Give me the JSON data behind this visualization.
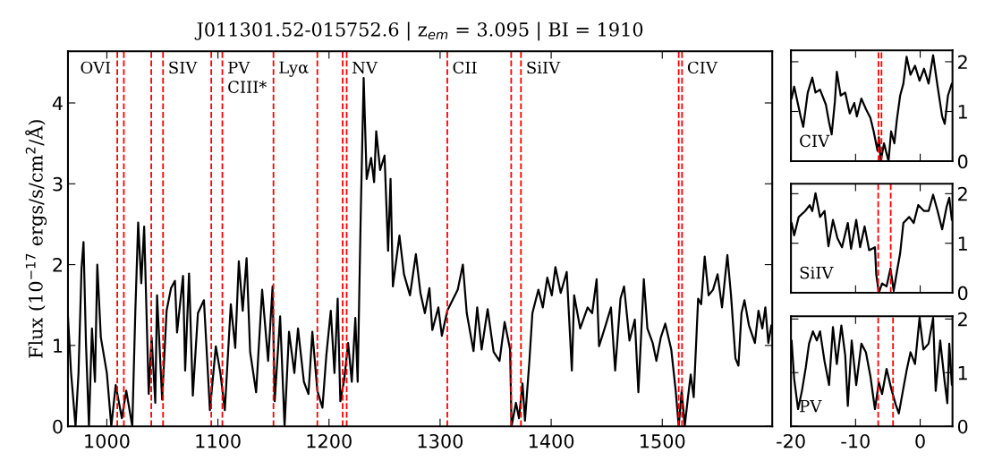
{
  "chart_data": [
    {
      "type": "line",
      "title": "J011301.52-015752.6 | z$_{em}$ = 3.095 | BI = 1910",
      "ylabel": "Flux (10$^{−17}$ ergs/s/cm$^{2}$/Å)",
      "x": [
        965,
        967.8,
        971.8,
        974.5,
        977.2,
        979,
        981.2,
        983.9,
        986.6,
        989.3,
        991.4,
        994.6,
        1000,
        1004,
        1008,
        1013.5,
        1017.5,
        1022.9,
        1025.6,
        1028.2,
        1031,
        1033.6,
        1037.7,
        1040.3,
        1043.6,
        1045.2,
        1049.8,
        1053.8,
        1057.8,
        1061.3,
        1063.2,
        1068.6,
        1070.5,
        1074,
        1077.4,
        1082,
        1087.4,
        1092.8,
        1098.1,
        1102.2,
        1106.2,
        1111.6,
        1115.6,
        1118.8,
        1122.3,
        1125.8,
        1129,
        1134.4,
        1139.8,
        1145.2,
        1149.2,
        1151.1,
        1156,
        1160,
        1164,
        1168.8,
        1172.1,
        1177.4,
        1181.5,
        1185,
        1189.5,
        1194.1,
        1197.6,
        1201.6,
        1204.9,
        1207.8,
        1210.2,
        1213.7,
        1217.2,
        1220.5,
        1223.7,
        1225.8,
        1228.5,
        1231.2,
        1233.9,
        1237.9,
        1240.6,
        1242.5,
        1246,
        1250,
        1253.2,
        1255.4,
        1257.5,
        1263.4,
        1267.5,
        1272.9,
        1278.2,
        1282.3,
        1286.3,
        1290.4,
        1293,
        1298.4,
        1301.6,
        1306.5,
        1311.9,
        1315.9,
        1320.5,
        1324,
        1330.1,
        1333.4,
        1337.4,
        1342.8,
        1348.2,
        1353.5,
        1358.1,
        1363,
        1364.3,
        1368.3,
        1371,
        1374.2,
        1376.4,
        1380.4,
        1383.1,
        1388.5,
        1392.5,
        1396.5,
        1400.6,
        1403.8,
        1408.6,
        1414,
        1418.6,
        1420.7,
        1426.1,
        1432.8,
        1436.9,
        1440.9,
        1443.1,
        1449,
        1453.8,
        1457.6,
        1462.4,
        1465.6,
        1470.5,
        1475.3,
        1478.5,
        1483.4,
        1486.6,
        1491.4,
        1494.7,
        1498.7,
        1502.7,
        1508.1,
        1512.1,
        1514.8,
        1517.5,
        1520.2,
        1522.9,
        1525.6,
        1528.3,
        1532.3,
        1535,
        1538.2,
        1541.7,
        1545.7,
        1549.8,
        1553.8,
        1558.6,
        1561.9,
        1565.9,
        1568.6,
        1571.3,
        1574,
        1578,
        1583.4,
        1586.6,
        1590.1,
        1592.8,
        1595.5,
        1598.2
      ],
      "series": [
        {
          "color": "#000000",
          "values": [
            1.36,
            0.66,
            0,
            0.66,
            1.95,
            2.28,
            1.03,
            0,
            1.21,
            0.55,
            2.0,
            1.1,
            0.66,
            0,
            0.51,
            0.1,
            0.44,
            0,
            1.4,
            2.52,
            1.77,
            2.47,
            0.4,
            1.1,
            0.29,
            1.62,
            0.33,
            1.43,
            1.71,
            1.8,
            1.16,
            1.86,
            0.69,
            1.89,
            0.38,
            1.4,
            1.56,
            0.2,
            0.99,
            0.66,
            0.2,
            1.51,
            0.97,
            2.04,
            1.43,
            2.08,
            0.92,
            0.42,
            1.69,
            0.81,
            1.73,
            0.31,
            1.36,
            0,
            1.17,
            0.66,
            1.21,
            0.55,
            0.4,
            1.17,
            0.44,
            0.23,
            0.88,
            1.43,
            0.66,
            1.58,
            0.31,
            0.58,
            1.03,
            0.55,
            1.34,
            0.55,
            2.58,
            4.31,
            3.06,
            3.32,
            3.02,
            3.65,
            3.17,
            3.35,
            2.17,
            3.06,
            1.73,
            2.36,
            1.88,
            1.62,
            2.13,
            1.65,
            1.4,
            1.71,
            1.19,
            1.47,
            1.12,
            1.43,
            1.58,
            1.69,
            2.0,
            1.4,
            0.93,
            1.47,
            0.95,
            1.45,
            0.92,
            0.81,
            1.29,
            0.95,
            0,
            0.29,
            0.1,
            0.53,
            0.07,
            0.81,
            1.4,
            1.69,
            1.47,
            1.84,
            1.62,
            1.97,
            1.65,
            1.91,
            0.69,
            1.62,
            1.21,
            1.47,
            1.4,
            1.82,
            0.99,
            1.25,
            1.47,
            0.69,
            1.58,
            1.73,
            1.06,
            1.32,
            0.42,
            1.82,
            1.21,
            1.03,
            0.81,
            1.1,
            1.27,
            0.95,
            0.44,
            0,
            0.44,
            0,
            0.33,
            0.64,
            0.36,
            1.58,
            1.51,
            2.1,
            1.62,
            1.69,
            1.88,
            1.47,
            2.12,
            1.62,
            0.84,
            0.75,
            1.4,
            1.56,
            1.25,
            1.03,
            1.43,
            1.21,
            1.47,
            1.03,
            1.25
          ]
        }
      ],
      "xlim": [
        965,
        1599
      ],
      "ylim": [
        0,
        4.64
      ],
      "xticks": [
        1000,
        1100,
        1200,
        1300,
        1400,
        1500
      ],
      "yticks": [
        0,
        1,
        2,
        3,
        4
      ],
      "grid": false,
      "line_style": "solid",
      "marker": "none",
      "ref_lines": [
        {
          "axis": "x",
          "value": 1009.4,
          "color": "#ff0000",
          "line_style": "dashed",
          "label": "OVI"
        },
        {
          "axis": "x",
          "value": 1015.3,
          "color": "#ff0000",
          "line_style": "dashed"
        },
        {
          "axis": "x",
          "value": 1040,
          "color": "#ff0000",
          "line_style": "dashed"
        },
        {
          "axis": "x",
          "value": 1050.6,
          "color": "#ff0000",
          "line_style": "dashed",
          "label": "SIV"
        },
        {
          "axis": "x",
          "value": 1094,
          "color": "#ff0000",
          "line_style": "dashed"
        },
        {
          "axis": "x",
          "value": 1104,
          "color": "#ff0000",
          "line_style": "dashed",
          "label": "PV\nCIII*"
        },
        {
          "axis": "x",
          "value": 1150,
          "color": "#ff0000",
          "line_style": "dashed",
          "label": "Lyα"
        },
        {
          "axis": "x",
          "value": 1189.5,
          "color": "#ff0000",
          "line_style": "dashed"
        },
        {
          "axis": "x",
          "value": 1212.3,
          "color": "#ff0000",
          "line_style": "dashed"
        },
        {
          "axis": "x",
          "value": 1215.9,
          "color": "#ff0000",
          "line_style": "dashed",
          "label": "NV"
        },
        {
          "axis": "x",
          "value": 1306.5,
          "color": "#ff0000",
          "line_style": "dashed",
          "label": "CII"
        },
        {
          "axis": "x",
          "value": 1364,
          "color": "#ff0000",
          "line_style": "dashed"
        },
        {
          "axis": "x",
          "value": 1372.8,
          "color": "#ff0000",
          "line_style": "dashed",
          "label": "SiIV"
        },
        {
          "axis": "x",
          "value": 1514.8,
          "color": "#ff0000",
          "line_style": "dashed"
        },
        {
          "axis": "x",
          "value": 1517.8,
          "color": "#ff0000",
          "line_style": "dashed",
          "label": "CIV"
        }
      ]
    },
    {
      "type": "line",
      "x": [
        -19.9,
        -19.5,
        -19,
        -18.5,
        -18.1,
        -17.4,
        -16.7,
        -16.2,
        -15.5,
        -14.6,
        -14.1,
        -13.7,
        -13.2,
        -12.9,
        -12.3,
        -11.6,
        -10.9,
        -10.2,
        -9.8,
        -9.1,
        -8.4,
        -7.7,
        -7.2,
        -6.6,
        -6.4,
        -6.1,
        -5.6,
        -4.9,
        -4.5,
        -4.0,
        -3.6,
        -3.1,
        -2.6,
        -2.1,
        -1.5,
        -0.8,
        -0.1,
        0.6,
        1.3,
        2.0,
        2.7,
        3.4,
        3.8,
        4.3,
        4.9
      ],
      "series": [
        {
          "color": "#000000",
          "values": [
            1.26,
            1.5,
            1.2,
            0.9,
            0.69,
            1.38,
            1.68,
            1.38,
            1.44,
            1.14,
            0.78,
            0.54,
            1.2,
            1.8,
            1.32,
            1.38,
            0.96,
            1.17,
            0.9,
            1.26,
            1.05,
            0.87,
            0.6,
            0.21,
            0.48,
            0,
            0.36,
            0,
            0.6,
            0.36,
            0.84,
            1.32,
            1.56,
            2.1,
            1.74,
            1.92,
            1.62,
            1.86,
            1.56,
            2.13,
            1.5,
            0.9,
            0.75,
            1.32,
            1.56
          ]
        }
      ],
      "xlim": [
        -20,
        5
      ],
      "ylim": [
        0,
        2.23
      ],
      "xticks": [
        -20,
        -10,
        0
      ],
      "yticks": [
        0,
        1,
        2
      ],
      "tick_labels": "y",
      "grid": false,
      "line_style": "solid",
      "marker": "none",
      "ref_lines": [
        {
          "axis": "x",
          "value": -6.46,
          "color": "#ff0000",
          "line_style": "dashed"
        },
        {
          "axis": "x",
          "value": -5.99,
          "color": "#ff0000",
          "line_style": "dashed"
        }
      ],
      "annotations": [
        "CIV"
      ]
    },
    {
      "type": "line",
      "x": [
        -19.9,
        -19.5,
        -18.8,
        -17.8,
        -17.1,
        -16.7,
        -16.2,
        -15.5,
        -14.8,
        -14.2,
        -13.5,
        -12.8,
        -12.1,
        -11.2,
        -10.7,
        -9.9,
        -9.3,
        -8.6,
        -7.9,
        -7.0,
        -6.8,
        -6.4,
        -5.9,
        -5.2,
        -4.6,
        -4.1,
        -3.6,
        -3.1,
        -2.6,
        -1.7,
        -1.0,
        -0.3,
        0.6,
        1.3,
        2.0,
        2.7,
        3.4,
        4.1,
        4.5,
        4.9
      ],
      "series": [
        {
          "color": "#000000",
          "values": [
            1.41,
            1.16,
            1.53,
            1.65,
            1.77,
            1.65,
            2.01,
            1.53,
            1.65,
            0.94,
            1.47,
            1.1,
            0.92,
            1.41,
            0.89,
            1.47,
            0.92,
            1.34,
            0.86,
            0.92,
            0.37,
            0,
            0.19,
            0.13,
            0.49,
            0.04,
            0.43,
            0.8,
            1.41,
            1.53,
            1.41,
            1.77,
            1.65,
            1.65,
            1.98,
            1.65,
            1.28,
            1.74,
            1.92,
            1.47
          ]
        }
      ],
      "xlim": [
        -20,
        5
      ],
      "ylim": [
        0,
        2.2
      ],
      "xticks": [
        -20,
        -10,
        0
      ],
      "yticks": [
        0,
        1,
        2
      ],
      "tick_labels": "y",
      "grid": false,
      "line_style": "solid",
      "marker": "none",
      "ref_lines": [
        {
          "axis": "x",
          "value": -6.5,
          "color": "#ff0000",
          "line_style": "dashed"
        },
        {
          "axis": "x",
          "value": -4.56,
          "color": "#ff0000",
          "line_style": "dashed"
        }
      ],
      "annotations": [
        "SiIV"
      ]
    },
    {
      "type": "line",
      "x": [
        -19.9,
        -19.5,
        -18.9,
        -18.3,
        -17.7,
        -17.2,
        -16.6,
        -16.0,
        -15.5,
        -14.8,
        -14.1,
        -13.5,
        -12.9,
        -12.2,
        -11.6,
        -11.2,
        -10.6,
        -9.9,
        -9.1,
        -8.4,
        -7.7,
        -7.0,
        -6.4,
        -5.9,
        -5.2,
        -4.5,
        -3.8,
        -3.3,
        -2.6,
        -2.1,
        -1.5,
        -0.8,
        -0.1,
        0.5,
        1.3,
        2.0,
        2.4,
        3.1,
        3.8,
        4.2,
        4.5,
        4.9
      ],
      "series": [
        {
          "color": "#000000",
          "values": [
            1.6,
            0.88,
            0.32,
            0.66,
            1.1,
            1.54,
            1.77,
            1.6,
            1.77,
            1.21,
            0.77,
            1.85,
            1.16,
            1.88,
            1.32,
            0.38,
            1.6,
            0.77,
            1.54,
            1.38,
            0.93,
            0.32,
            0.82,
            0.6,
            1.07,
            0.71,
            0.41,
            0.24,
            0.71,
            1.04,
            1.38,
            1.16,
            2.02,
            1.43,
            1.54,
            2.02,
            0.66,
            1.6,
            0.82,
            0.43,
            1.54,
            0.77
          ]
        }
      ],
      "xlim": [
        -20,
        5
      ],
      "ylim": [
        0,
        2.05
      ],
      "xticks": [
        -20,
        -10,
        0
      ],
      "yticks": [
        0,
        1,
        2
      ],
      "grid": false,
      "line_style": "solid",
      "marker": "none",
      "ref_lines": [
        {
          "axis": "x",
          "value": -6.5,
          "color": "#ff0000",
          "line_style": "dashed"
        },
        {
          "axis": "x",
          "value": -4.2,
          "color": "#ff0000",
          "line_style": "dashed"
        }
      ],
      "annotations": [
        "PV"
      ]
    }
  ]
}
